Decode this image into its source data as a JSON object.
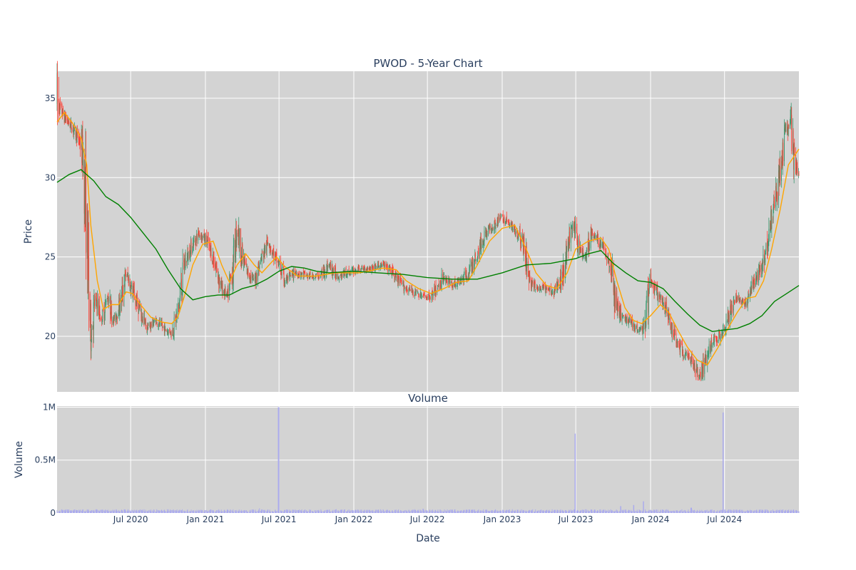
{
  "chart_data": [
    {
      "type": "candlestick",
      "title": "PWOD - 5-Year Chart",
      "ylabel": "Price",
      "ylim": [
        16.5,
        36.7
      ],
      "yticks": [
        20,
        25,
        30,
        35
      ],
      "xlim": [
        "2020-01-02",
        "2024-12-31"
      ],
      "up_color": "#3d9970",
      "down_color": "#ff4136",
      "plot_bg": "#d3d3d3",
      "grid_color": "#ffffff",
      "close_anchors": [
        [
          "2020-01-02",
          34.8
        ],
        [
          "2020-01-20",
          33.8
        ],
        [
          "2020-02-10",
          33.1
        ],
        [
          "2020-02-25",
          32.4
        ],
        [
          "2020-03-05",
          31.5
        ],
        [
          "2020-03-12",
          28.5
        ],
        [
          "2020-03-18",
          24.5
        ],
        [
          "2020-03-25",
          20.0
        ],
        [
          "2020-04-05",
          22.5
        ],
        [
          "2020-04-20",
          21.0
        ],
        [
          "2020-05-05",
          22.5
        ],
        [
          "2020-05-20",
          21.0
        ],
        [
          "2020-06-05",
          22.0
        ],
        [
          "2020-06-20",
          24.0
        ],
        [
          "2020-07-10",
          22.5
        ],
        [
          "2020-07-25",
          21.5
        ],
        [
          "2020-08-10",
          20.5
        ],
        [
          "2020-09-01",
          21.0
        ],
        [
          "2020-09-20",
          20.5
        ],
        [
          "2020-10-10",
          20.2
        ],
        [
          "2020-10-25",
          21.5
        ],
        [
          "2020-11-10",
          24.5
        ],
        [
          "2020-11-25",
          25.5
        ],
        [
          "2020-12-15",
          26.5
        ],
        [
          "2021-01-05",
          26.0
        ],
        [
          "2021-01-25",
          24.5
        ],
        [
          "2021-02-10",
          23.0
        ],
        [
          "2021-02-25",
          22.5
        ],
        [
          "2021-03-10",
          24.5
        ],
        [
          "2021-03-20",
          27.0
        ],
        [
          "2021-04-01",
          25.0
        ],
        [
          "2021-04-15",
          24.0
        ],
        [
          "2021-05-01",
          23.5
        ],
        [
          "2021-05-20",
          25.0
        ],
        [
          "2021-06-05",
          26.0
        ],
        [
          "2021-06-20",
          25.0
        ],
        [
          "2021-07-01",
          24.5
        ],
        [
          "2021-07-15",
          23.5
        ],
        [
          "2021-08-10",
          24.0
        ],
        [
          "2021-09-10",
          23.8
        ],
        [
          "2021-10-10",
          23.8
        ],
        [
          "2021-11-01",
          24.5
        ],
        [
          "2021-11-20",
          23.8
        ],
        [
          "2021-12-15",
          24.0
        ],
        [
          "2022-01-10",
          24.2
        ],
        [
          "2022-02-10",
          24.3
        ],
        [
          "2022-03-10",
          24.5
        ],
        [
          "2022-04-01",
          24.2
        ],
        [
          "2022-04-20",
          23.5
        ],
        [
          "2022-05-10",
          23.0
        ],
        [
          "2022-05-30",
          22.8
        ],
        [
          "2022-06-20",
          22.5
        ],
        [
          "2022-07-10",
          22.5
        ],
        [
          "2022-07-25",
          23.0
        ],
        [
          "2022-08-10",
          23.8
        ],
        [
          "2022-08-30",
          23.2
        ],
        [
          "2022-09-20",
          23.5
        ],
        [
          "2022-10-10",
          24.0
        ],
        [
          "2022-10-30",
          25.0
        ],
        [
          "2022-11-20",
          26.5
        ],
        [
          "2022-12-10",
          27.0
        ],
        [
          "2023-01-01",
          27.5
        ],
        [
          "2023-01-20",
          27.0
        ],
        [
          "2023-02-10",
          26.5
        ],
        [
          "2023-02-25",
          25.5
        ],
        [
          "2023-03-10",
          23.5
        ],
        [
          "2023-03-25",
          23.0
        ],
        [
          "2023-04-15",
          23.0
        ],
        [
          "2023-05-05",
          22.8
        ],
        [
          "2023-05-25",
          23.5
        ],
        [
          "2023-06-10",
          25.5
        ],
        [
          "2023-06-25",
          27.0
        ],
        [
          "2023-07-10",
          25.5
        ],
        [
          "2023-07-25",
          25.0
        ],
        [
          "2023-08-10",
          26.5
        ],
        [
          "2023-08-25",
          26.0
        ],
        [
          "2023-09-10",
          25.5
        ],
        [
          "2023-09-25",
          24.5
        ],
        [
          "2023-10-05",
          22.5
        ],
        [
          "2023-10-20",
          21.2
        ],
        [
          "2023-11-10",
          21.0
        ],
        [
          "2023-11-30",
          20.5
        ],
        [
          "2023-12-15",
          20.5
        ],
        [
          "2024-01-01",
          23.5
        ],
        [
          "2024-01-20",
          22.5
        ],
        [
          "2024-02-10",
          21.5
        ],
        [
          "2024-03-01",
          20.0
        ],
        [
          "2024-03-20",
          19.0
        ],
        [
          "2024-04-10",
          18.5
        ],
        [
          "2024-04-30",
          17.5
        ],
        [
          "2024-05-15",
          18.5
        ],
        [
          "2024-05-30",
          19.5
        ],
        [
          "2024-06-15",
          20.0
        ],
        [
          "2024-07-01",
          20.5
        ],
        [
          "2024-07-15",
          21.5
        ],
        [
          "2024-08-01",
          22.5
        ],
        [
          "2024-08-20",
          22.0
        ],
        [
          "2024-09-05",
          23.0
        ],
        [
          "2024-09-25",
          24.0
        ],
        [
          "2024-10-10",
          25.5
        ],
        [
          "2024-10-25",
          27.5
        ],
        [
          "2024-11-10",
          29.5
        ],
        [
          "2024-11-25",
          32.5
        ],
        [
          "2024-12-10",
          33.5
        ],
        [
          "2024-12-20",
          30.8
        ],
        [
          "2024-12-31",
          30.2
        ]
      ],
      "moving_averages": [
        {
          "color": "#ffa500",
          "points": [
            [
              "2020-01-02",
              33.5
            ],
            [
              "2020-01-20",
              34.1
            ],
            [
              "2020-02-10",
              33.4
            ],
            [
              "2020-03-01",
              32.5
            ],
            [
              "2020-03-15",
              30.8
            ],
            [
              "2020-03-25",
              27.0
            ],
            [
              "2020-04-10",
              23.5
            ],
            [
              "2020-04-25",
              21.7
            ],
            [
              "2020-05-15",
              22.0
            ],
            [
              "2020-06-01",
              22.0
            ],
            [
              "2020-06-20",
              22.8
            ],
            [
              "2020-07-05",
              22.7
            ],
            [
              "2020-07-25",
              22.0
            ],
            [
              "2020-08-20",
              21.2
            ],
            [
              "2020-09-15",
              20.9
            ],
            [
              "2020-10-10",
              20.8
            ],
            [
              "2020-10-25",
              21.2
            ],
            [
              "2020-11-10",
              22.5
            ],
            [
              "2020-12-01",
              24.5
            ],
            [
              "2020-12-25",
              25.8
            ],
            [
              "2021-01-20",
              26.0
            ],
            [
              "2021-02-10",
              24.5
            ],
            [
              "2021-03-01",
              23.4
            ],
            [
              "2021-03-20",
              24.5
            ],
            [
              "2021-04-10",
              25.2
            ],
            [
              "2021-05-01",
              24.5
            ],
            [
              "2021-05-20",
              24.0
            ],
            [
              "2021-06-10",
              24.6
            ],
            [
              "2021-06-25",
              25.0
            ],
            [
              "2021-07-15",
              24.4
            ],
            [
              "2021-08-15",
              23.8
            ],
            [
              "2021-10-01",
              23.8
            ],
            [
              "2021-11-15",
              24.0
            ],
            [
              "2022-01-15",
              24.0
            ],
            [
              "2022-03-15",
              24.3
            ],
            [
              "2022-04-15",
              24.2
            ],
            [
              "2022-05-10",
              23.5
            ],
            [
              "2022-06-10",
              23.0
            ],
            [
              "2022-07-10",
              22.7
            ],
            [
              "2022-08-10",
              23.0
            ],
            [
              "2022-09-10",
              23.4
            ],
            [
              "2022-10-10",
              23.5
            ],
            [
              "2022-11-01",
              24.5
            ],
            [
              "2022-12-01",
              26.0
            ],
            [
              "2023-01-01",
              26.8
            ],
            [
              "2023-02-01",
              27.0
            ],
            [
              "2023-03-01",
              25.5
            ],
            [
              "2023-03-25",
              24.0
            ],
            [
              "2023-04-20",
              23.2
            ],
            [
              "2023-05-15",
              23.0
            ],
            [
              "2023-06-10",
              24.0
            ],
            [
              "2023-07-01",
              25.5
            ],
            [
              "2023-08-01",
              26.0
            ],
            [
              "2023-09-01",
              26.2
            ],
            [
              "2023-09-20",
              25.5
            ],
            [
              "2023-10-10",
              23.5
            ],
            [
              "2023-10-30",
              21.8
            ],
            [
              "2023-11-20",
              21.0
            ],
            [
              "2023-12-10",
              20.8
            ],
            [
              "2024-01-01",
              21.3
            ],
            [
              "2024-01-25",
              22.0
            ],
            [
              "2024-02-15",
              21.5
            ],
            [
              "2024-03-10",
              20.3
            ],
            [
              "2024-04-01",
              19.3
            ],
            [
              "2024-04-25",
              18.5
            ],
            [
              "2024-05-20",
              18.2
            ],
            [
              "2024-06-15",
              19.3
            ],
            [
              "2024-07-05",
              20.3
            ],
            [
              "2024-08-01",
              21.5
            ],
            [
              "2024-08-25",
              22.4
            ],
            [
              "2024-09-15",
              22.5
            ],
            [
              "2024-10-05",
              23.5
            ],
            [
              "2024-10-25",
              25.5
            ],
            [
              "2024-11-15",
              28.0
            ],
            [
              "2024-12-05",
              30.8
            ],
            [
              "2024-12-31",
              31.8
            ]
          ]
        },
        {
          "color": "#008000",
          "points": [
            [
              "2020-01-02",
              29.7
            ],
            [
              "2020-02-01",
              30.2
            ],
            [
              "2020-03-01",
              30.5
            ],
            [
              "2020-04-01",
              29.8
            ],
            [
              "2020-05-01",
              28.8
            ],
            [
              "2020-06-01",
              28.3
            ],
            [
              "2020-07-01",
              27.5
            ],
            [
              "2020-08-01",
              26.5
            ],
            [
              "2020-09-01",
              25.5
            ],
            [
              "2020-10-01",
              24.2
            ],
            [
              "2020-11-01",
              23.0
            ],
            [
              "2020-12-01",
              22.3
            ],
            [
              "2021-01-01",
              22.5
            ],
            [
              "2021-02-01",
              22.6
            ],
            [
              "2021-03-01",
              22.6
            ],
            [
              "2021-04-01",
              23.0
            ],
            [
              "2021-05-01",
              23.2
            ],
            [
              "2021-06-01",
              23.6
            ],
            [
              "2021-07-01",
              24.1
            ],
            [
              "2021-08-01",
              24.4
            ],
            [
              "2021-09-01",
              24.3
            ],
            [
              "2021-10-01",
              24.1
            ],
            [
              "2021-11-01",
              24.0
            ],
            [
              "2022-01-01",
              24.1
            ],
            [
              "2022-03-01",
              24.0
            ],
            [
              "2022-05-01",
              23.9
            ],
            [
              "2022-07-01",
              23.7
            ],
            [
              "2022-09-01",
              23.6
            ],
            [
              "2022-11-01",
              23.6
            ],
            [
              "2023-01-01",
              24.0
            ],
            [
              "2023-03-01",
              24.5
            ],
            [
              "2023-05-01",
              24.6
            ],
            [
              "2023-07-01",
              24.9
            ],
            [
              "2023-08-01",
              25.2
            ],
            [
              "2023-09-01",
              25.4
            ],
            [
              "2023-10-01",
              24.6
            ],
            [
              "2023-11-01",
              24.0
            ],
            [
              "2023-12-01",
              23.5
            ],
            [
              "2024-01-01",
              23.4
            ],
            [
              "2024-02-01",
              23.0
            ],
            [
              "2024-03-01",
              22.2
            ],
            [
              "2024-04-01",
              21.4
            ],
            [
              "2024-05-01",
              20.7
            ],
            [
              "2024-06-01",
              20.3
            ],
            [
              "2024-07-01",
              20.4
            ],
            [
              "2024-08-01",
              20.5
            ],
            [
              "2024-09-01",
              20.8
            ],
            [
              "2024-10-01",
              21.3
            ],
            [
              "2024-11-01",
              22.2
            ],
            [
              "2024-12-01",
              22.7
            ],
            [
              "2024-12-31",
              23.2
            ]
          ]
        }
      ]
    },
    {
      "type": "bar",
      "title": "Volume",
      "xlabel": "Date",
      "ylabel": "Volume",
      "ylim": [
        0,
        1010000
      ],
      "yticks": [
        0,
        500000,
        1000000
      ],
      "ytick_labels": [
        "0",
        "0.5M",
        "1M"
      ],
      "bar_color": "#aaaaee",
      "baseline_volume": 22000,
      "spikes": [
        [
          "2021-06-30",
          1000000
        ],
        [
          "2023-06-30",
          750000
        ],
        [
          "2024-06-28",
          950000
        ],
        [
          "2023-12-15",
          110000
        ],
        [
          "2023-11-20",
          75000
        ],
        [
          "2023-10-20",
          65000
        ],
        [
          "2021-05-15",
          45000
        ],
        [
          "2022-06-20",
          40000
        ],
        [
          "2024-04-10",
          50000
        ]
      ],
      "xticks": [
        {
          "date": "2020-07-01",
          "label": "Jul 2020"
        },
        {
          "date": "2021-01-01",
          "label": "Jan 2021"
        },
        {
          "date": "2021-07-01",
          "label": "Jul 2021"
        },
        {
          "date": "2022-01-01",
          "label": "Jan 2022"
        },
        {
          "date": "2022-07-01",
          "label": "Jul 2022"
        },
        {
          "date": "2023-01-01",
          "label": "Jan 2023"
        },
        {
          "date": "2023-07-01",
          "label": "Jul 2023"
        },
        {
          "date": "2024-01-01",
          "label": "Jan 2024"
        },
        {
          "date": "2024-07-01",
          "label": "Jul 2024"
        }
      ]
    }
  ]
}
